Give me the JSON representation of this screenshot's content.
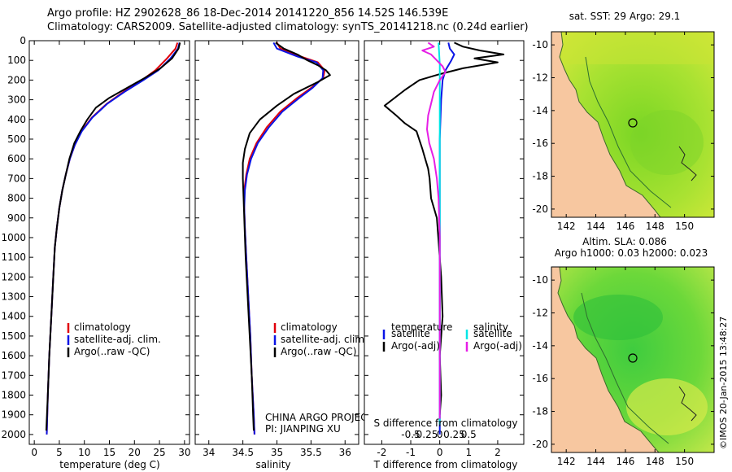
{
  "header": {
    "line1": "Argo profile: HZ 2902628_86 18-Dec-2014 20141220_856 14.52S 146.539E",
    "line2": "Climatology: CARS2009. Satellite-adjusted climatology: synTS_20141218.nc (0.24d earlier)"
  },
  "credit": {
    "project": "CHINA ARGO PROJECT",
    "pi": "PI: JIANPING XU",
    "stamp": "©IMOS 20-Jan-2015 13:48:27"
  },
  "legend_main": {
    "items": [
      {
        "label": "climatology",
        "color": "#e0000a"
      },
      {
        "label": "satellite-adj. clim.",
        "color": "#0a14e6"
      },
      {
        "label": "Argo(..raw -QC)",
        "color": "#000000"
      }
    ]
  },
  "legend_diff": {
    "temperature_title": "temperature",
    "salinity_title": "salinity",
    "temperature": [
      {
        "label": "satellite",
        "color": "#0a14e6"
      },
      {
        "label": "Argo(-adj)",
        "color": "#000000"
      }
    ],
    "salinity": [
      {
        "label": "satellite",
        "color": "#00e6e6"
      },
      {
        "label": "Argo(-adj)",
        "color": "#e61ee6"
      }
    ]
  },
  "maps": {
    "sst": {
      "title": "sat. SST: 29 Argo: 29.1",
      "xticks": [
        "142",
        "144",
        "146",
        "148",
        "150"
      ],
      "yticks": [
        "-10",
        "-12",
        "-14",
        "-16",
        "-18",
        "-20"
      ],
      "xlim": [
        141,
        152
      ],
      "ylim": [
        -20.5,
        -9.2
      ],
      "argo_position": [
        146.539,
        -14.52
      ]
    },
    "sla": {
      "title1": "Altim. SLA: 0.086",
      "title2": "Argo h1000: 0.03 h2000: 0.023",
      "xticks": [
        "142",
        "144",
        "146",
        "148",
        "150"
      ],
      "yticks": [
        "-10",
        "-12",
        "-14",
        "-16",
        "-18",
        "-20"
      ],
      "xlim": [
        141,
        152
      ],
      "ylim": [
        -20.5,
        -9.2
      ],
      "argo_position": [
        146.539,
        -14.52
      ]
    },
    "colors": {
      "land": "#f7c7a0"
    }
  },
  "chart_data": [
    {
      "type": "line",
      "id": "temperature",
      "xlabel": "temperature (deg C)",
      "ylabel": "",
      "xlim": [
        -1,
        31
      ],
      "ylim": [
        2050,
        0
      ],
      "xticks": [
        "0",
        "5",
        "10",
        "15",
        "20",
        "25",
        "30"
      ],
      "xtick_values": [
        0,
        5,
        10,
        15,
        20,
        25,
        30
      ],
      "yticks": [
        "0",
        "100",
        "200",
        "300",
        "400",
        "500",
        "600",
        "700",
        "800",
        "900",
        "1000",
        "1100",
        "1200",
        "1300",
        "1400",
        "1500",
        "1600",
        "1700",
        "1800",
        "1900",
        "2000"
      ],
      "ytick_values": [
        0,
        100,
        200,
        300,
        400,
        500,
        600,
        700,
        800,
        900,
        1000,
        1100,
        1200,
        1300,
        1400,
        1500,
        1600,
        1700,
        1800,
        1900,
        2000
      ],
      "series": [
        {
          "name": "climatology",
          "color": "#e0000a",
          "points": [
            [
              28.6,
              10
            ],
            [
              28.2,
              40
            ],
            [
              26.5,
              90
            ],
            [
              24.2,
              150
            ],
            [
              21.5,
              200
            ],
            [
              17.8,
              260
            ],
            [
              14.5,
              320
            ],
            [
              11.5,
              390
            ],
            [
              9.4,
              460
            ],
            [
              8.1,
              530
            ],
            [
              7.1,
              600
            ],
            [
              6.3,
              680
            ],
            [
              5.6,
              760
            ],
            [
              5.0,
              850
            ],
            [
              4.5,
              950
            ],
            [
              4.1,
              1050
            ],
            [
              3.8,
              1200
            ],
            [
              3.4,
              1400
            ],
            [
              3.0,
              1600
            ],
            [
              2.7,
              1800
            ],
            [
              2.5,
              2000
            ]
          ]
        },
        {
          "name": "satellite-adj. clim.",
          "color": "#0a14e6",
          "points": [
            [
              29.0,
              10
            ],
            [
              28.7,
              40
            ],
            [
              27.2,
              90
            ],
            [
              24.8,
              150
            ],
            [
              21.8,
              200
            ],
            [
              18.0,
              260
            ],
            [
              14.6,
              320
            ],
            [
              11.6,
              390
            ],
            [
              9.5,
              460
            ],
            [
              8.1,
              530
            ],
            [
              7.1,
              600
            ],
            [
              6.3,
              680
            ],
            [
              5.6,
              760
            ],
            [
              5.0,
              850
            ],
            [
              4.5,
              950
            ],
            [
              4.1,
              1050
            ],
            [
              3.8,
              1200
            ],
            [
              3.4,
              1400
            ],
            [
              3.0,
              1600
            ],
            [
              2.7,
              1800
            ],
            [
              2.5,
              2000
            ]
          ]
        },
        {
          "name": "Argo(..raw -QC)",
          "color": "#000000",
          "points": [
            [
              29.1,
              10
            ],
            [
              28.8,
              40
            ],
            [
              27.5,
              90
            ],
            [
              25.2,
              140
            ],
            [
              22.0,
              190
            ],
            [
              18.5,
              240
            ],
            [
              15.0,
              290
            ],
            [
              12.3,
              340
            ],
            [
              10.6,
              400
            ],
            [
              9.2,
              460
            ],
            [
              8.0,
              520
            ],
            [
              7.0,
              600
            ],
            [
              6.3,
              680
            ],
            [
              5.6,
              760
            ],
            [
              5.0,
              850
            ],
            [
              4.5,
              950
            ],
            [
              4.1,
              1050
            ],
            [
              3.8,
              1200
            ],
            [
              3.4,
              1400
            ],
            [
              3.0,
              1600
            ],
            [
              2.7,
              1800
            ],
            [
              2.4,
              1980
            ]
          ]
        }
      ]
    },
    {
      "type": "line",
      "id": "salinity",
      "xlabel": "salinity",
      "ylabel": "",
      "xlim": [
        33.8,
        36.2
      ],
      "ylim": [
        2050,
        0
      ],
      "xticks": [
        "34",
        "34.5",
        "35",
        "35.5",
        "36"
      ],
      "xtick_values": [
        34,
        34.5,
        35,
        35.5,
        36
      ],
      "series": [
        {
          "name": "climatology",
          "color": "#e0000a",
          "points": [
            [
              35.0,
              10
            ],
            [
              35.05,
              40
            ],
            [
              35.35,
              80
            ],
            [
              35.6,
              110
            ],
            [
              35.7,
              150
            ],
            [
              35.68,
              190
            ],
            [
              35.5,
              240
            ],
            [
              35.3,
              290
            ],
            [
              35.05,
              360
            ],
            [
              34.85,
              440
            ],
            [
              34.7,
              520
            ],
            [
              34.6,
              600
            ],
            [
              34.55,
              680
            ],
            [
              34.52,
              760
            ],
            [
              34.52,
              850
            ],
            [
              34.53,
              950
            ],
            [
              34.55,
              1100
            ],
            [
              34.58,
              1300
            ],
            [
              34.61,
              1500
            ],
            [
              34.63,
              1700
            ],
            [
              34.66,
              1900
            ],
            [
              34.67,
              2000
            ]
          ]
        },
        {
          "name": "satellite-adj. clim.",
          "color": "#0a14e6",
          "points": [
            [
              34.95,
              10
            ],
            [
              35.0,
              40
            ],
            [
              35.3,
              80
            ],
            [
              35.58,
              110
            ],
            [
              35.68,
              150
            ],
            [
              35.67,
              190
            ],
            [
              35.52,
              240
            ],
            [
              35.33,
              290
            ],
            [
              35.08,
              360
            ],
            [
              34.88,
              440
            ],
            [
              34.72,
              520
            ],
            [
              34.62,
              600
            ],
            [
              34.56,
              680
            ],
            [
              34.53,
              760
            ],
            [
              34.52,
              850
            ],
            [
              34.53,
              950
            ],
            [
              34.55,
              1100
            ],
            [
              34.58,
              1300
            ],
            [
              34.61,
              1500
            ],
            [
              34.63,
              1700
            ],
            [
              34.66,
              1900
            ],
            [
              34.67,
              2000
            ]
          ]
        },
        {
          "name": "Argo(..raw -QC)",
          "color": "#000000",
          "points": [
            [
              34.98,
              10
            ],
            [
              35.1,
              40
            ],
            [
              35.3,
              70
            ],
            [
              35.45,
              100
            ],
            [
              35.6,
              125
            ],
            [
              35.72,
              150
            ],
            [
              35.78,
              175
            ],
            [
              35.6,
              210
            ],
            [
              35.25,
              270
            ],
            [
              35.0,
              330
            ],
            [
              34.75,
              400
            ],
            [
              34.6,
              470
            ],
            [
              34.53,
              550
            ],
            [
              34.5,
              620
            ],
            [
              34.5,
              700
            ],
            [
              34.51,
              800
            ],
            [
              34.52,
              900
            ],
            [
              34.54,
              1100
            ],
            [
              34.57,
              1300
            ],
            [
              34.6,
              1500
            ],
            [
              34.63,
              1700
            ],
            [
              34.65,
              1900
            ],
            [
              34.66,
              1980
            ]
          ]
        }
      ]
    },
    {
      "type": "line",
      "id": "difference",
      "xlabel": "T difference from climatology",
      "x2label": "S difference from climatology",
      "xlim": [
        -2.6,
        2.9
      ],
      "ylim": [
        2050,
        0
      ],
      "xticks": [
        "-2",
        "-1",
        "0",
        "1",
        "2"
      ],
      "xtick_values": [
        -2,
        -1,
        0,
        1,
        2
      ],
      "x2ticks": [
        "-0.5",
        "-0.25",
        "0",
        "0.25",
        "0.5"
      ],
      "x2tick_values": [
        -0.5,
        -0.25,
        0,
        0.25,
        0.5
      ],
      "series": [
        {
          "name": "temperature satellite",
          "color": "#0a14e6",
          "points": [
            [
              0.3,
              10
            ],
            [
              0.35,
              40
            ],
            [
              0.5,
              70
            ],
            [
              0.4,
              100
            ],
            [
              0.2,
              150
            ],
            [
              0.1,
              200
            ],
            [
              0.05,
              300
            ],
            [
              0.0,
              500
            ],
            [
              0.0,
              1000
            ],
            [
              0.0,
              2000
            ]
          ]
        },
        {
          "name": "temperature Argo(-adj)",
          "color": "#000000",
          "points": [
            [
              0.5,
              10
            ],
            [
              0.8,
              30
            ],
            [
              1.4,
              50
            ],
            [
              2.2,
              70
            ],
            [
              1.2,
              90
            ],
            [
              2.0,
              110
            ],
            [
              0.8,
              140
            ],
            [
              0.0,
              170
            ],
            [
              -0.7,
              200
            ],
            [
              -1.2,
              250
            ],
            [
              -1.9,
              330
            ],
            [
              -1.5,
              380
            ],
            [
              -1.2,
              420
            ],
            [
              -0.8,
              460
            ],
            [
              -0.6,
              550
            ],
            [
              -0.5,
              600
            ],
            [
              -0.4,
              650
            ],
            [
              -0.35,
              700
            ],
            [
              -0.3,
              800
            ],
            [
              -0.1,
              900
            ],
            [
              -0.05,
              1000
            ],
            [
              0.05,
              1200
            ],
            [
              0.1,
              1400
            ],
            [
              0.0,
              1600
            ],
            [
              0.05,
              1800
            ],
            [
              0.0,
              1900
            ]
          ]
        },
        {
          "name": "salinity satellite",
          "color": "#00e6e6",
          "points": [
            [
              -0.02,
              10
            ],
            [
              -0.01,
              60
            ],
            [
              0.0,
              120
            ],
            [
              0.0,
              300
            ],
            [
              0.0,
              600
            ],
            [
              0.0,
              1000
            ],
            [
              0.0,
              1500
            ],
            [
              0.0,
              1950
            ]
          ]
        },
        {
          "name": "salinity Argo(-adj)",
          "color": "#e61ee6",
          "points": [
            [
              -0.2,
              10
            ],
            [
              -0.1,
              30
            ],
            [
              -0.3,
              50
            ],
            [
              -0.15,
              70
            ],
            [
              -0.05,
              100
            ],
            [
              0.05,
              130
            ],
            [
              0.1,
              160
            ],
            [
              0.0,
              200
            ],
            [
              -0.1,
              260
            ],
            [
              -0.15,
              320
            ],
            [
              -0.2,
              380
            ],
            [
              -0.22,
              450
            ],
            [
              -0.18,
              520
            ],
            [
              -0.1,
              600
            ],
            [
              -0.05,
              700
            ],
            [
              -0.02,
              800
            ],
            [
              0.0,
              1000
            ],
            [
              0.0,
              1400
            ],
            [
              0.0,
              1800
            ],
            [
              0.0,
              1920
            ]
          ]
        }
      ]
    }
  ]
}
